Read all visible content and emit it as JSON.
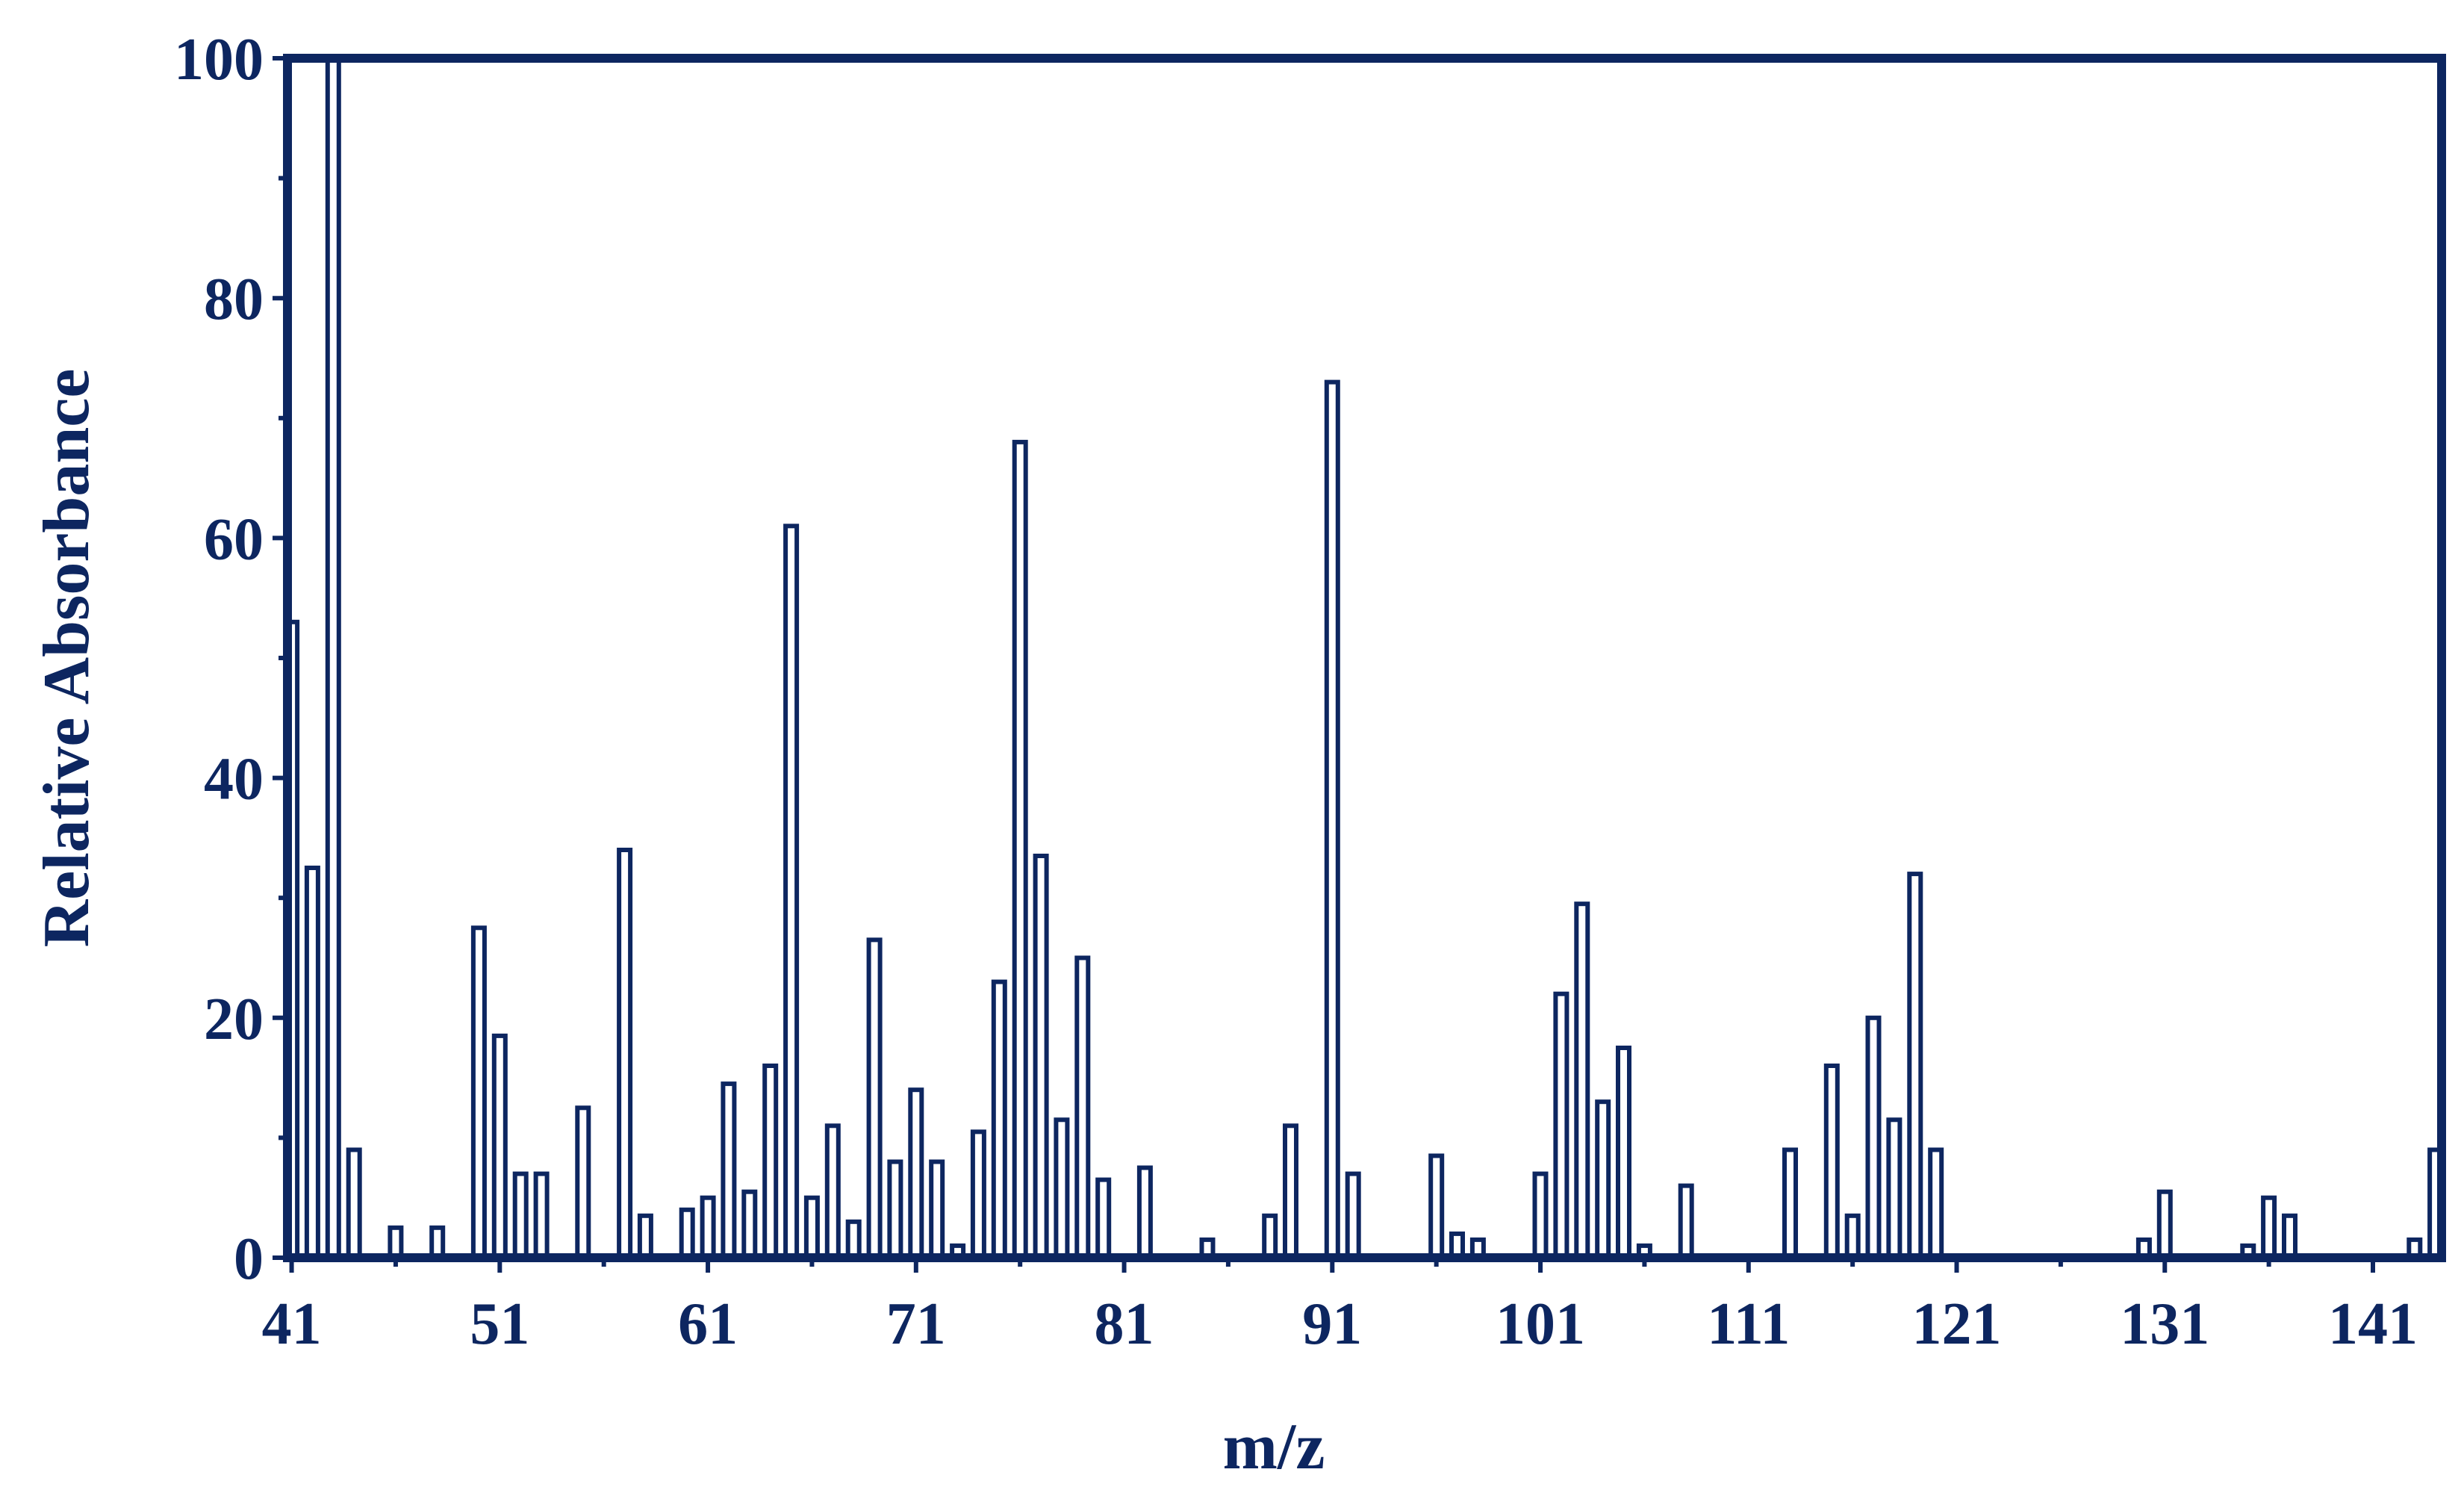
{
  "chart_data": {
    "type": "bar",
    "xlabel": "m/z",
    "ylabel": "Relative Absorbance",
    "xlim": [
      40.8,
      144.3
    ],
    "ylim": [
      0,
      100
    ],
    "x_ticks": [
      41,
      51,
      61,
      71,
      81,
      91,
      101,
      111,
      121,
      131,
      141
    ],
    "y_ticks": [
      0,
      20,
      40,
      60,
      80,
      100
    ],
    "grid": false,
    "legend": "none",
    "color": "#0d2660",
    "x": [
      41,
      42,
      43,
      44,
      46,
      48,
      50,
      51,
      52,
      53,
      55,
      57,
      58,
      60,
      61,
      62,
      63,
      64,
      65,
      66,
      67,
      68,
      69,
      70,
      71,
      72,
      73,
      74,
      75,
      76,
      77,
      78,
      79,
      80,
      82,
      85,
      88,
      89,
      91,
      92,
      96,
      97,
      98,
      101,
      102,
      103,
      104,
      105,
      106,
      108,
      113,
      115,
      116,
      117,
      118,
      119,
      120,
      130,
      131,
      135,
      136,
      137,
      143,
      144
    ],
    "values": [
      53,
      32.5,
      100,
      9,
      2.5,
      2.5,
      27.5,
      18.5,
      7,
      7,
      12.5,
      34,
      3.5,
      4,
      5,
      14.5,
      5.5,
      16,
      61,
      5,
      11,
      3,
      26.5,
      8,
      14,
      8,
      1,
      10.5,
      23,
      68,
      33.5,
      11.5,
      25,
      6.5,
      7.5,
      1.5,
      3.5,
      11,
      73,
      7,
      8.5,
      2,
      1.5,
      7,
      22,
      29.5,
      13,
      17.5,
      1,
      6,
      9,
      16,
      3.5,
      20,
      11.5,
      32,
      9,
      1.5,
      5.5,
      1,
      5,
      3.5,
      1.5,
      9
    ]
  }
}
